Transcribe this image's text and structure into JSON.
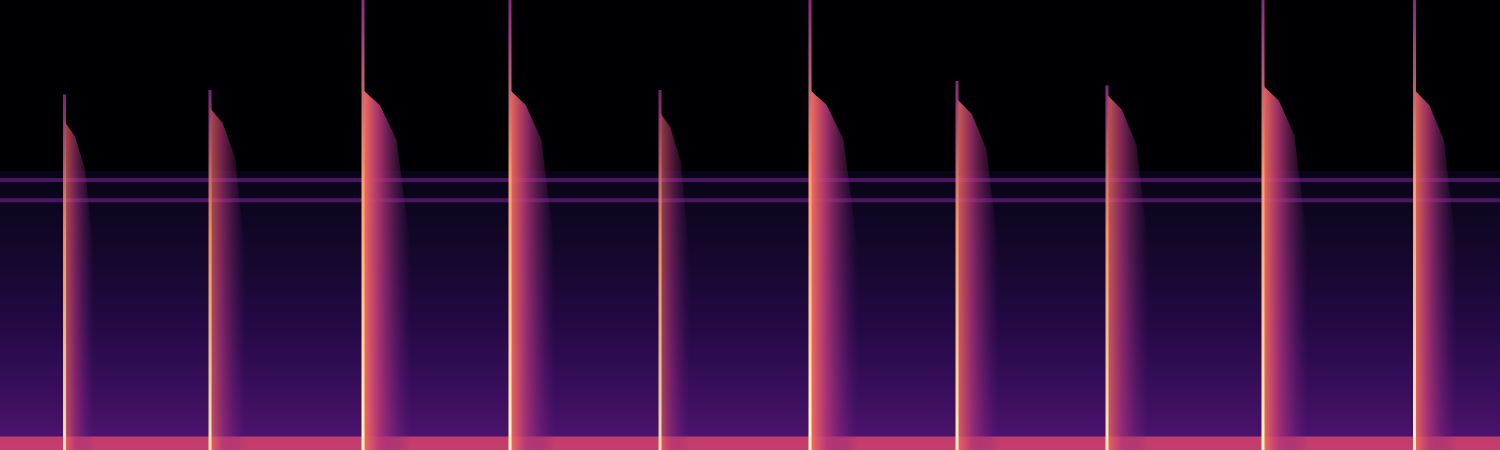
{
  "chart_data": {
    "type": "spectrogram",
    "xlim": [
      0,
      100
    ],
    "ylim": [
      0,
      100
    ],
    "tick_labels": false,
    "noise_top": 62,
    "floor_top": 3,
    "bands": [
      60,
      55.5
    ],
    "events": [
      {
        "onset": 4.3,
        "impulse_top": 79,
        "tail_top": 73,
        "tail_width": 2.0,
        "intensity": 0.7
      },
      {
        "onset": 14.0,
        "impulse_top": 80,
        "tail_top": 76,
        "tail_width": 2.4,
        "intensity": 0.7
      },
      {
        "onset": 24.2,
        "impulse_top": 100,
        "tail_top": 80,
        "tail_width": 3.2,
        "intensity": 1.0
      },
      {
        "onset": 34.0,
        "impulse_top": 100,
        "tail_top": 80,
        "tail_width": 3.0,
        "intensity": 0.95
      },
      {
        "onset": 44.0,
        "impulse_top": 80,
        "tail_top": 75,
        "tail_width": 2.0,
        "intensity": 0.6
      },
      {
        "onset": 54.0,
        "impulse_top": 100,
        "tail_top": 80,
        "tail_width": 3.2,
        "intensity": 1.0
      },
      {
        "onset": 63.8,
        "impulse_top": 82,
        "tail_top": 78,
        "tail_width": 2.8,
        "intensity": 0.85
      },
      {
        "onset": 73.8,
        "impulse_top": 81,
        "tail_top": 79,
        "tail_width": 2.8,
        "intensity": 0.8
      },
      {
        "onset": 84.2,
        "impulse_top": 100,
        "tail_top": 81,
        "tail_width": 3.0,
        "intensity": 0.95
      },
      {
        "onset": 94.3,
        "impulse_top": 100,
        "tail_top": 80,
        "tail_width": 2.8,
        "intensity": 0.9
      }
    ]
  }
}
